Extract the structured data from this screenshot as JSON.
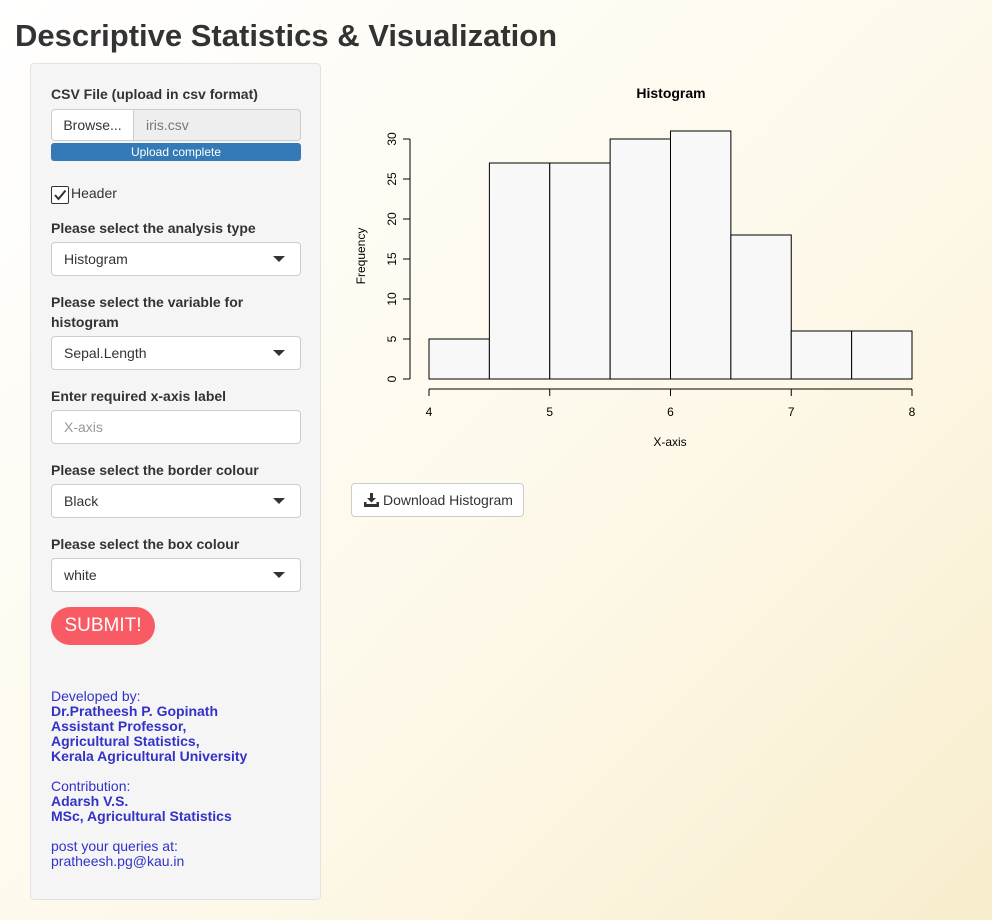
{
  "page": {
    "title": "Descriptive Statistics & Visualization"
  },
  "sidebar": {
    "csv_label": "CSV File (upload in csv format)",
    "browse_label": "Browse...",
    "file_name": "iris.csv",
    "upload_status": "Upload complete",
    "upload_progress": 1.0,
    "header_label": "Header",
    "header_checked": true,
    "analysis_label": "Please select the analysis type",
    "analysis_value": "Histogram",
    "variable_label": "Please select the variable for histogram",
    "variable_value": "Sepal.Length",
    "xlabel_label": "Enter required x-axis label",
    "xlabel_placeholder": "X-axis",
    "border_label": "Please select the border colour",
    "border_value": "Black",
    "box_label": "Please select the box colour",
    "box_value": "white",
    "submit_label": "SUBMIT!"
  },
  "credits": {
    "developed_by": "Developed by:",
    "dev_name": "Dr.Pratheesh P. Gopinath",
    "dev_title": "Assistant Professor,",
    "dev_dept": "Agricultural Statistics,",
    "dev_org": "Kerala Agricultural University",
    "contribution": "Contribution:",
    "contrib_name": "Adarsh V.S.",
    "contrib_degree": "MSc, Agricultural Statistics",
    "queries": "post your queries at:",
    "email": "pratheesh.pg@kau.in"
  },
  "download": {
    "label": "Download Histogram"
  },
  "colors": {
    "progress": "#337ab7",
    "submit": "#f95b64",
    "credits_text": "#3232c8",
    "bar_fill": "#f8f8f8",
    "bar_border": "#000000"
  },
  "chart_data": {
    "type": "bar",
    "title": "Histogram",
    "xlabel": "X-axis",
    "ylabel": "Frequency",
    "bins": [
      {
        "start": 4.0,
        "end": 4.5,
        "count": 5
      },
      {
        "start": 4.5,
        "end": 5.0,
        "count": 27
      },
      {
        "start": 5.0,
        "end": 5.5,
        "count": 27
      },
      {
        "start": 5.5,
        "end": 6.0,
        "count": 30
      },
      {
        "start": 6.0,
        "end": 6.5,
        "count": 31
      },
      {
        "start": 6.5,
        "end": 7.0,
        "count": 18
      },
      {
        "start": 7.0,
        "end": 7.5,
        "count": 6
      },
      {
        "start": 7.5,
        "end": 8.0,
        "count": 6
      }
    ],
    "xlim": [
      4,
      8
    ],
    "ylim": [
      0,
      31
    ],
    "x_ticks": [
      "4",
      "5",
      "6",
      "7",
      "8"
    ],
    "y_ticks": [
      "0",
      "5",
      "10",
      "15",
      "20",
      "25",
      "30"
    ],
    "grid": false
  }
}
